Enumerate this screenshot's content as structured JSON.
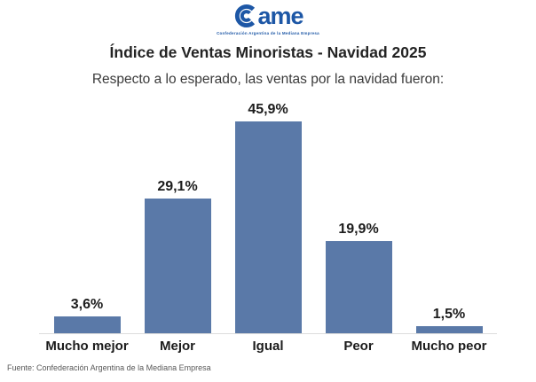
{
  "logo": {
    "brand": "ame",
    "tagline": "Confederación Argentina de la Mediana Empresa",
    "color": "#1d57a6"
  },
  "header": {
    "title": "Índice de Ventas Minoristas - Navidad 2025",
    "subtitle": "Respecto a lo esperado, las ventas por la navidad fueron:"
  },
  "chart_data": {
    "type": "bar",
    "title": "Índice de Ventas Minoristas - Navidad 2025",
    "subtitle": "Respecto a lo esperado, las ventas por la navidad fueron:",
    "categories": [
      "Mucho mejor",
      "Mejor",
      "Igual",
      "Peor",
      "Mucho peor"
    ],
    "values": [
      3.6,
      29.1,
      45.9,
      19.9,
      1.5
    ],
    "value_labels": [
      "3,6%",
      "29,1%",
      "45,9%",
      "19,9%",
      "1,5%"
    ],
    "unit": "%",
    "bar_color": "#5a79a8",
    "ylim": [
      0,
      50
    ],
    "grid": false,
    "legend": "none",
    "baseline_color": "#dcdcdc"
  },
  "footer": {
    "source": "Fuente: Confederación Argentina de la Mediana Empresa"
  }
}
